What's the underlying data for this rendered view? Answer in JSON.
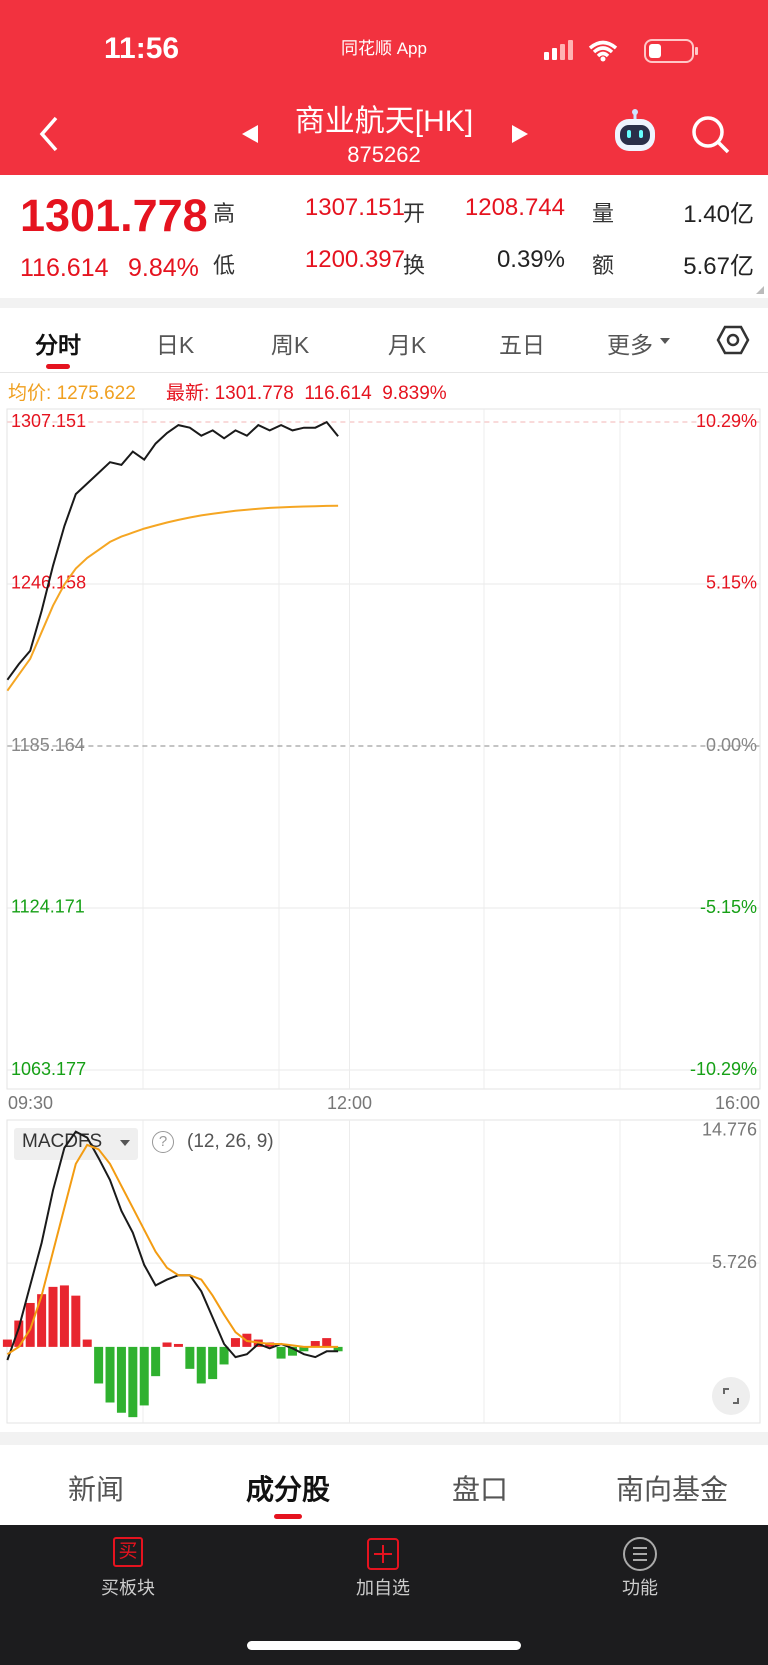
{
  "status_bar": {
    "time": "11:56",
    "app": "同花顺 App"
  },
  "header": {
    "title": "商业航天[HK]",
    "code": "875262"
  },
  "quote": {
    "price": "1301.778",
    "change": "116.614",
    "change_pct": "9.84%",
    "stats": [
      {
        "label": "高",
        "value": "1307.151"
      },
      {
        "label": "开",
        "value": "1208.744"
      },
      {
        "label": "量",
        "value": "1.40亿"
      },
      {
        "label": "低",
        "value": "1200.397"
      },
      {
        "label": "换",
        "value": "0.39%"
      },
      {
        "label": "额",
        "value": "5.67亿"
      }
    ]
  },
  "chart_tabs": [
    "分时",
    "日K",
    "周K",
    "月K",
    "五日",
    "更多"
  ],
  "info": {
    "avg_label": "均价:",
    "avg": "1275.622",
    "latest_label": "最新:",
    "latest": "1301.778",
    "change": "116.614",
    "change_pct": "9.839%"
  },
  "chart_data": [
    {
      "type": "line",
      "x": [
        0,
        5,
        10,
        15,
        20,
        25,
        30,
        35,
        40,
        45,
        50,
        55,
        60,
        65,
        70,
        75,
        80,
        85,
        90,
        95,
        100,
        105,
        110,
        115,
        120,
        125,
        130,
        135,
        140,
        145
      ],
      "series": [
        {
          "color": "#1a1a1a",
          "values": [
            1210.1,
            1216,
            1221,
            1236,
            1253,
            1268,
            1280,
            1284,
            1288,
            1292,
            1291,
            1296,
            1293,
            1299,
            1303,
            1306,
            1305,
            1302,
            1304,
            1301,
            1304,
            1302,
            1306,
            1304,
            1306,
            1304,
            1305,
            1305,
            1307.1,
            1301.778
          ]
        },
        {
          "color": "#f5a623",
          "values": [
            1206,
            1212,
            1218,
            1228,
            1238,
            1246,
            1252,
            1256,
            1259,
            1262,
            1264,
            1265.5,
            1267,
            1268.2,
            1269.3,
            1270.3,
            1271.2,
            1272,
            1272.6,
            1273.2,
            1273.7,
            1274.1,
            1274.5,
            1274.8,
            1275.0,
            1275.2,
            1275.35,
            1275.45,
            1275.55,
            1275.622
          ]
        }
      ],
      "xlim": [
        0,
        330
      ],
      "xticks": [
        {
          "value": 0,
          "label": "09:30"
        },
        {
          "value": 150,
          "label": "12:00"
        },
        {
          "value": 330,
          "label": "16:00"
        }
      ],
      "ylim": [
        1063.177,
        1307.151
      ],
      "yticks": [
        1307.151,
        1246.158,
        1185.164,
        1124.171,
        1063.177
      ],
      "y2lim": [
        -10.29,
        10.29
      ],
      "y2ticks": [
        {
          "value": 10.29,
          "label": "10.29%"
        },
        {
          "value": 5.15,
          "label": "5.15%"
        },
        {
          "value": 0,
          "label": "0.00%"
        },
        {
          "value": -5.15,
          "label": "-5.15%"
        },
        {
          "value": -10.29,
          "label": "-10.29%"
        }
      ]
    },
    {
      "type": "macd",
      "title": "MACDFS",
      "help": "?",
      "params": "(12, 26, 9)",
      "x": [
        0,
        5,
        10,
        15,
        20,
        25,
        30,
        35,
        40,
        45,
        50,
        55,
        60,
        65,
        70,
        75,
        80,
        85,
        90,
        95,
        100,
        105,
        110,
        115,
        120,
        125,
        130,
        135,
        140,
        145
      ],
      "series": [
        {
          "color": "#1a1a1a",
          "values": [
            -0.9,
            1.3,
            4.2,
            7.1,
            10.7,
            13.6,
            14.7,
            14.3,
            12.9,
            11.4,
            9.3,
            7.8,
            5.6,
            4.2,
            4.6,
            4.9,
            4.9,
            3.8,
            2.0,
            0.2,
            -0.7,
            -0.5,
            0.2,
            -0.1,
            0.2,
            -0.1,
            -0.5,
            -0.7,
            -0.3,
            -0.3
          ]
        },
        {
          "color": "#f39c12",
          "values": [
            -0.5,
            0,
            1.2,
            3.5,
            6.5,
            9.5,
            12.5,
            13.8,
            13.5,
            12.5,
            11,
            9.5,
            8,
            6.5,
            5.4,
            4.9,
            4.9,
            4.6,
            3.5,
            2.2,
            1.0,
            0.4,
            0.3,
            0.2,
            0.2,
            0.1,
            0.0,
            0.0,
            0.0,
            0.0
          ]
        },
        {
          "type": "bar",
          "up_color": "#e8262f",
          "down_color": "#2fb12f",
          "values": [
            0.5,
            1.8,
            3.0,
            3.6,
            4.1,
            4.2,
            3.5,
            0.5,
            -2.5,
            -3.8,
            -4.5,
            -4.8,
            -4.0,
            -2.0,
            0.3,
            0.2,
            -1.5,
            -2.5,
            -2.2,
            -1.2,
            0.6,
            0.9,
            0.5,
            0.3,
            -0.8,
            -0.6,
            -0.3,
            0.4,
            0.6,
            -0.3
          ]
        }
      ],
      "xlim": [
        0,
        330
      ],
      "ylim": [
        -5.2,
        15.5
      ],
      "yticks": [
        14.776,
        5.726
      ]
    }
  ],
  "bottom_tabs": [
    "新闻",
    "成分股",
    "盘口",
    "南向基金"
  ],
  "nav": [
    {
      "icon": "买",
      "label": "买板块"
    },
    {
      "label": "加自选"
    },
    {
      "label": "功能"
    }
  ]
}
